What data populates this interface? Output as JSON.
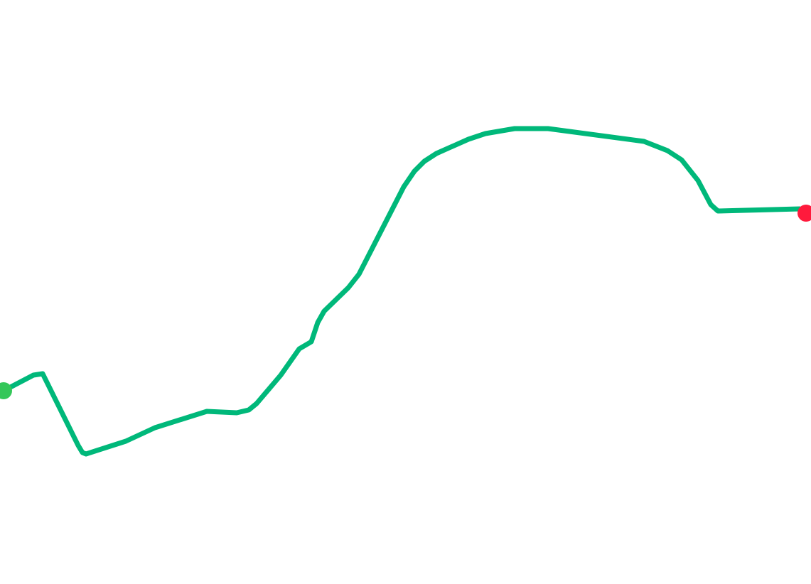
{
  "route": {
    "line_color": "#00b87a",
    "start_marker": {
      "label": "start",
      "color": "#34c759"
    },
    "end_marker": {
      "label": "end",
      "color": "#ff1a3c"
    }
  }
}
